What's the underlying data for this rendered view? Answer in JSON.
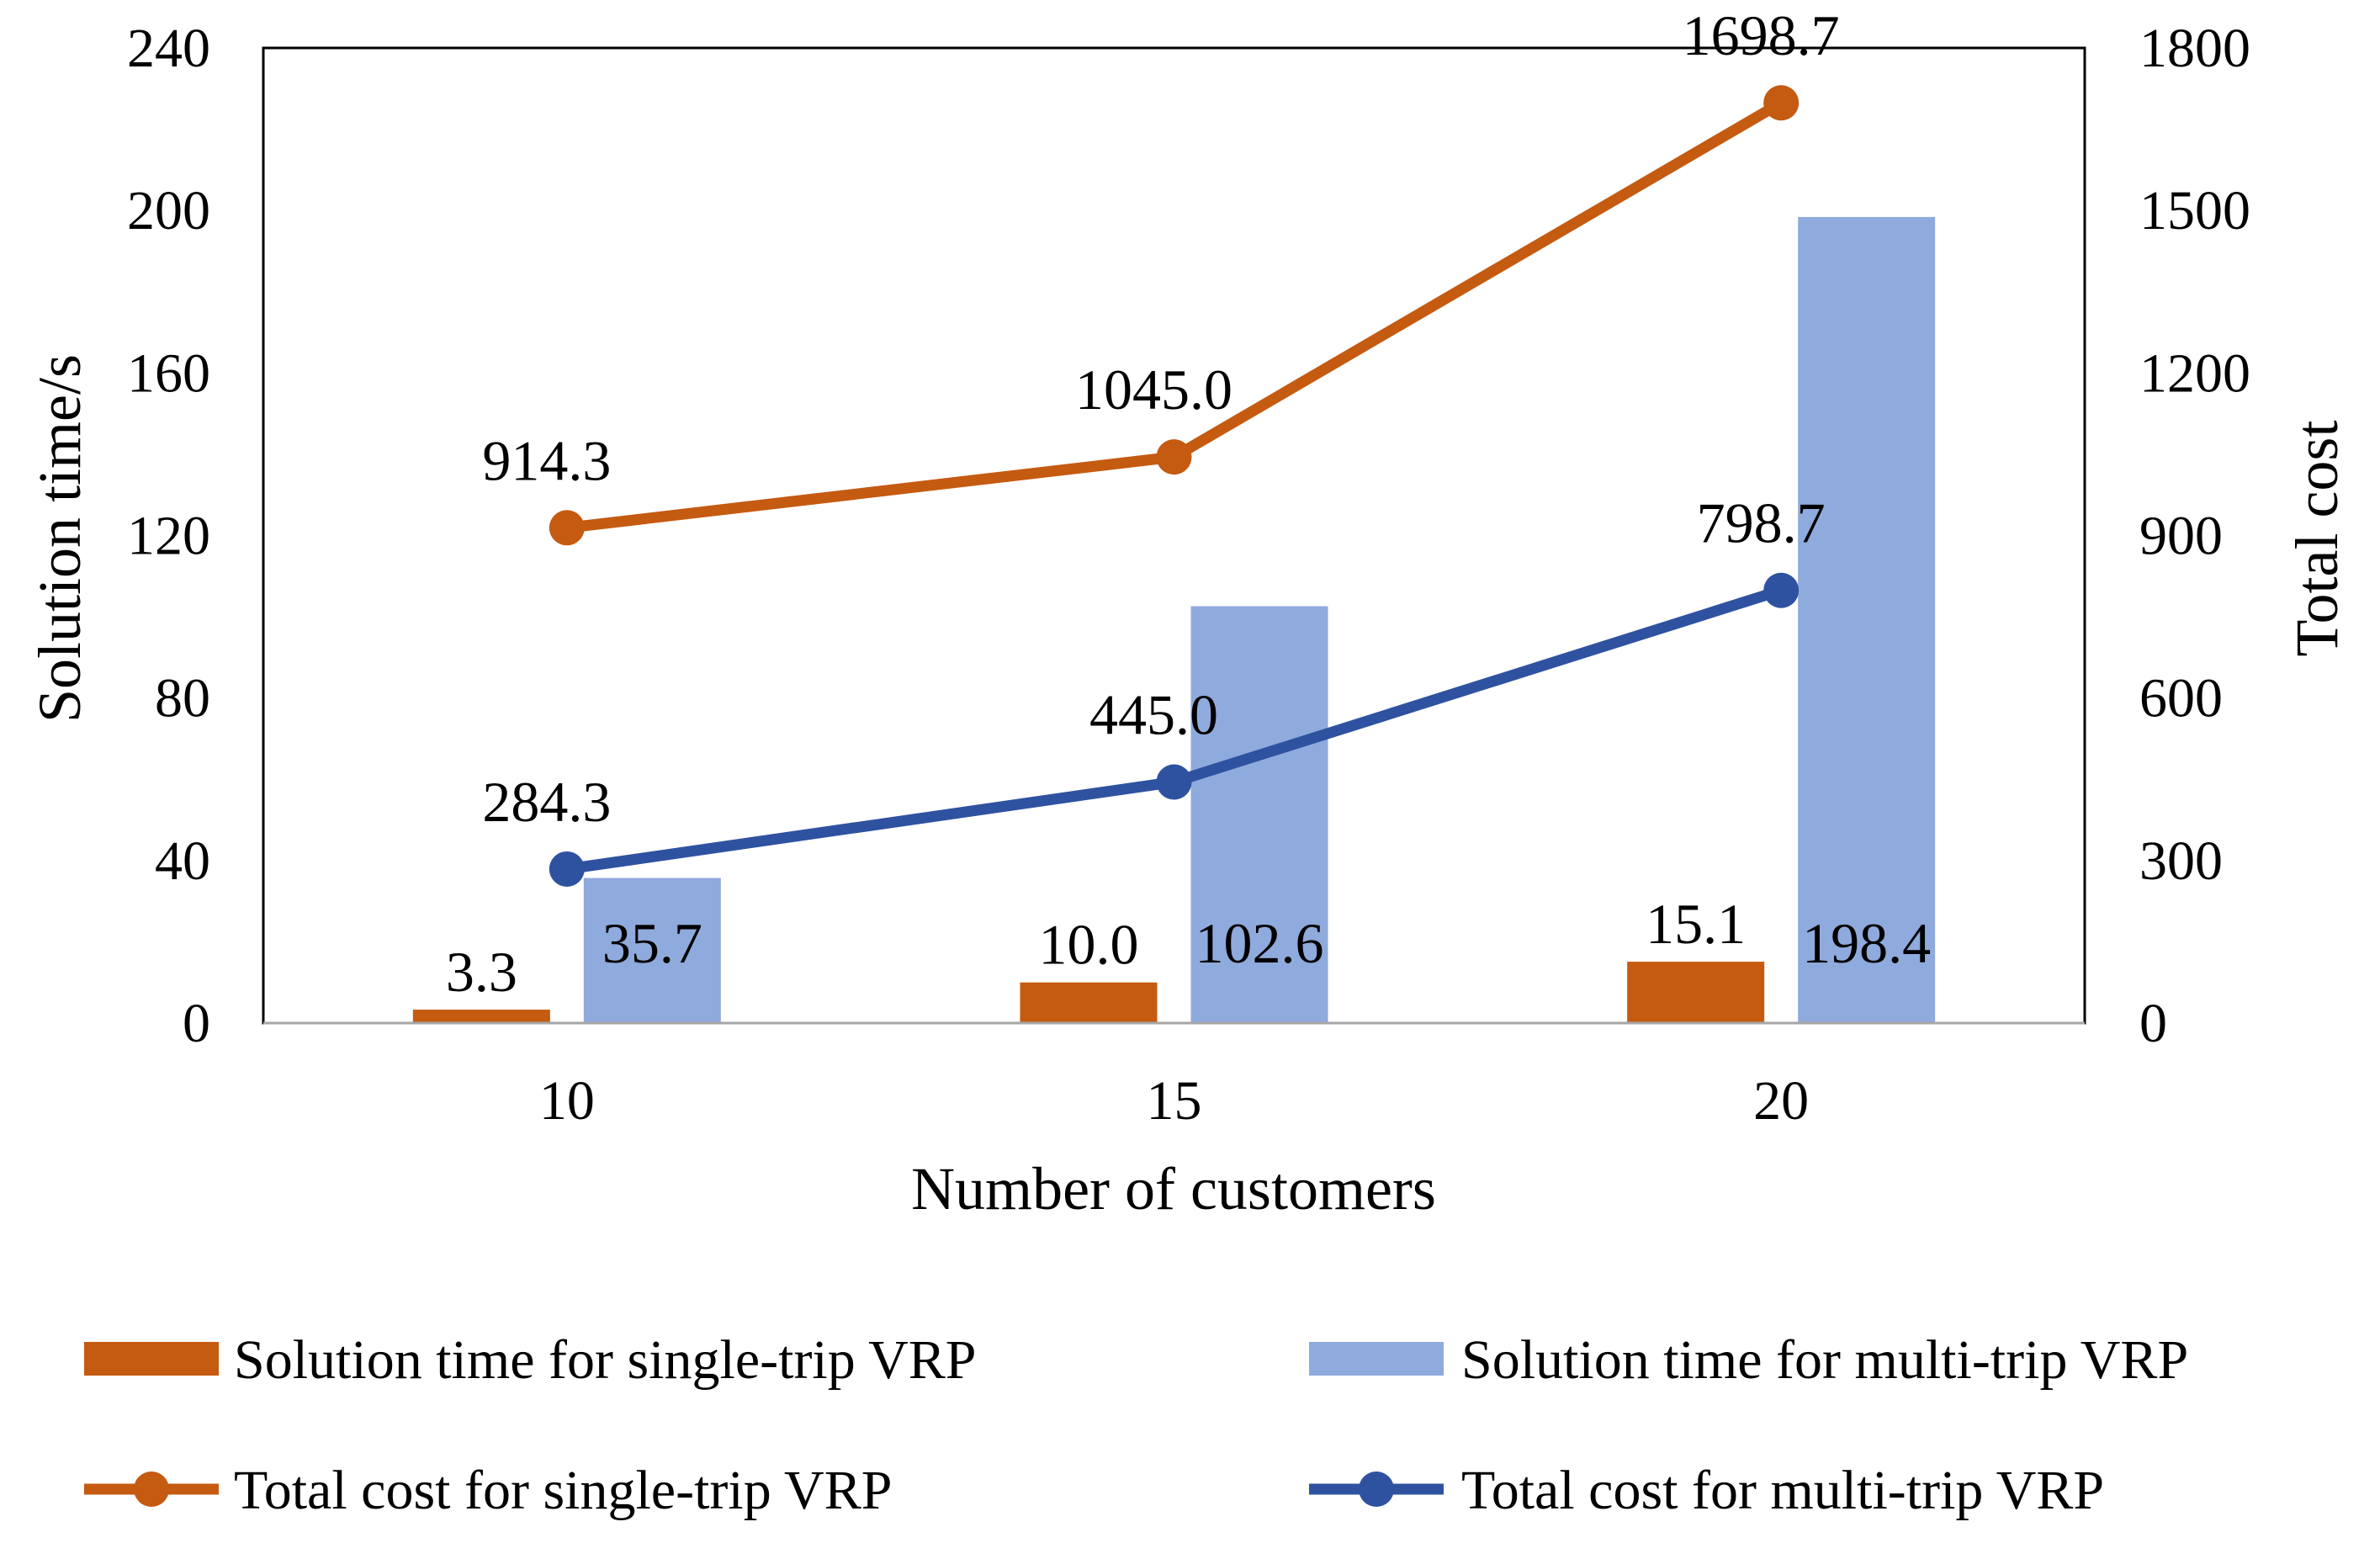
{
  "chart_data": {
    "type": "bar+line",
    "categories": [
      "10",
      "15",
      "20"
    ],
    "xlabel": "Number of customers",
    "ylabel_left": "Solution time/s",
    "ylabel_right": "Total cost",
    "ylim_left": [
      0,
      240
    ],
    "ylim_right": [
      0,
      1800
    ],
    "yticks_left": [
      "0",
      "40",
      "80",
      "120",
      "160",
      "200",
      "240"
    ],
    "yticks_right": [
      "0",
      "300",
      "600",
      "900",
      "1200",
      "1500",
      "1800"
    ],
    "grid": false,
    "legend_position": "bottom",
    "series": [
      {
        "name": "Solution time for single-trip VRP",
        "kind": "bar",
        "axis": "left",
        "color": "#C55A11",
        "values": [
          3.3,
          10.0,
          15.1
        ],
        "labels": [
          "3.3",
          "10.0",
          "15.1"
        ]
      },
      {
        "name": "Solution time for multi-trip VRP",
        "kind": "bar",
        "axis": "left",
        "color": "#8FAADC",
        "values": [
          35.7,
          102.6,
          198.4
        ],
        "labels": [
          "35.7",
          "102.6",
          "198.4"
        ]
      },
      {
        "name": "Total cost for single-trip VRP",
        "kind": "line",
        "axis": "right",
        "color": "#C55A11",
        "values": [
          914.3,
          1045.0,
          1698.7
        ],
        "labels": [
          "914.3",
          "1045.0",
          "1698.7"
        ]
      },
      {
        "name": "Total cost for multi-trip VRP",
        "kind": "line",
        "axis": "right",
        "color": "#2F52A0",
        "values": [
          284.3,
          445.0,
          798.7
        ],
        "labels": [
          "284.3",
          "445.0",
          "798.7"
        ]
      }
    ]
  }
}
